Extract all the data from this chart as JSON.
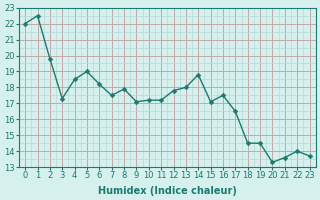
{
  "x": [
    0,
    1,
    2,
    3,
    4,
    5,
    6,
    7,
    8,
    9,
    10,
    11,
    12,
    13,
    14,
    15,
    16,
    17,
    18,
    19,
    20,
    21,
    22,
    23
  ],
  "y": [
    22,
    22.5,
    19.8,
    17.3,
    18.5,
    19.0,
    18.2,
    17.5,
    17.9,
    17.1,
    17.2,
    17.2,
    17.8,
    18.0,
    18.8,
    17.1,
    17.5,
    16.5,
    14.5,
    14.5,
    13.3,
    13.6,
    14.0,
    13.7
  ],
  "line_color": "#1a7a6e",
  "marker": "D",
  "marker_size": 2.5,
  "bg_color": "#d6f0ee",
  "major_grid_color": "#c4a9a9",
  "minor_grid_color": "#b8d8d5",
  "xlabel": "Humidex (Indice chaleur)",
  "ylim": [
    13,
    23
  ],
  "xlim": [
    -0.5,
    23.5
  ],
  "yticks": [
    13,
    14,
    15,
    16,
    17,
    18,
    19,
    20,
    21,
    22,
    23
  ],
  "xticks": [
    0,
    1,
    2,
    3,
    4,
    5,
    6,
    7,
    8,
    9,
    10,
    11,
    12,
    13,
    14,
    15,
    16,
    17,
    18,
    19,
    20,
    21,
    22,
    23
  ],
  "label_fontsize": 7,
  "tick_fontsize": 6
}
